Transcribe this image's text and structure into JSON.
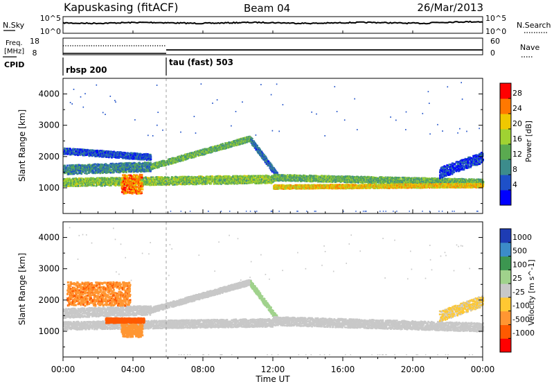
{
  "header": {
    "station": "Kapuskasing (fitACF)",
    "beam": "Beam 04",
    "date": "26/Mar/2013"
  },
  "noise_panel": {
    "left_label": "N.Sky",
    "right_label": "N.Search",
    "left_ticks": [
      "10^5",
      "10^0"
    ],
    "right_ticks": [
      "10^5",
      "10^0"
    ]
  },
  "freq_panel": {
    "left_label_1": "Freq.",
    "left_label_2": "[MHz]",
    "right_label": "Nave",
    "left_ticks": [
      "18",
      "8"
    ],
    "right_ticks": [
      "60",
      "0"
    ]
  },
  "cpid": {
    "label": "CPID",
    "segments": [
      {
        "name": "rbsp 200",
        "start_hour": 0
      },
      {
        "name": "tau (fast) 503",
        "start_hour": 6
      }
    ]
  },
  "x_axis": {
    "label": "Time UT",
    "ticks": [
      "00:00",
      "04:00",
      "08:00",
      "12:00",
      "16:00",
      "20:00",
      "00:00"
    ],
    "range_hours": [
      0,
      24
    ]
  },
  "power_bar": {
    "label": "Power [dB]",
    "ticks": [
      "28",
      "24",
      "20",
      "16",
      "12",
      "8",
      "4"
    ],
    "colors": [
      "#0000ff",
      "#1e50c8",
      "#3c8c8c",
      "#5aaa50",
      "#a0d232",
      "#f0c800",
      "#ff7800",
      "#ff0000"
    ]
  },
  "velocity_bar": {
    "label": "Velocity [m s^-1]",
    "ticks": [
      "1000",
      "500",
      "100",
      "25",
      "-25",
      "-100",
      "-500",
      "-1000"
    ],
    "colors": [
      "#ff0000",
      "#ff5a00",
      "#ff9632",
      "#ffc832",
      "#c8c8c8",
      "#a0d28c",
      "#3c9650",
      "#3c8cc8",
      "#1e3cb4"
    ]
  },
  "chart_data": {
    "type": "heatmap",
    "panels": [
      {
        "name": "power",
        "ylabel": "Slant Range [km]",
        "yticks": [
          1000,
          2000,
          3000,
          4000
        ],
        "ylim": [
          180,
          4500
        ],
        "colorbar_range": [
          0,
          30
        ],
        "features": [
          {
            "kind": "band",
            "t0": 0.0,
            "t1": 12.0,
            "r_start": 1200,
            "r_end": 1300,
            "width": 260,
            "level": 16
          },
          {
            "kind": "band",
            "t0": 0.0,
            "t1": 5.0,
            "r_start": 1600,
            "r_end": 1700,
            "width": 300,
            "level": 10
          },
          {
            "kind": "band",
            "t0": 0.0,
            "t1": 5.0,
            "r_start": 2200,
            "r_end": 2000,
            "width": 200,
            "level": 6
          },
          {
            "kind": "band",
            "t0": 5.0,
            "t1": 10.7,
            "r_start": 1700,
            "r_end": 2600,
            "width": 180,
            "level": 14
          },
          {
            "kind": "band",
            "t0": 10.7,
            "t1": 12.3,
            "r_start": 2550,
            "r_end": 1350,
            "width": 200,
            "level": 8
          },
          {
            "kind": "band",
            "t0": 12.0,
            "t1": 24.0,
            "r_start": 1350,
            "r_end": 1200,
            "width": 200,
            "level": 14
          },
          {
            "kind": "band",
            "t0": 12.0,
            "t1": 24.0,
            "r_start": 1050,
            "r_end": 1100,
            "width": 130,
            "level": 22
          },
          {
            "kind": "band",
            "t0": 21.5,
            "t1": 24.0,
            "r_start": 1500,
            "r_end": 2000,
            "width": 350,
            "level": 5
          },
          {
            "kind": "blob",
            "t0": 3.3,
            "t1": 4.5,
            "r_start": 850,
            "r_end": 1450,
            "level": 26
          }
        ]
      },
      {
        "name": "velocity",
        "ylabel": "Slant Range [km]",
        "yticks": [
          1000,
          2000,
          3000,
          4000
        ],
        "ylim": [
          180,
          4500
        ],
        "colorbar_range": [
          -1000,
          1000
        ],
        "features": [
          {
            "kind": "band",
            "t0": 0.0,
            "t1": 12.0,
            "r_start": 1200,
            "r_end": 1300,
            "width": 260,
            "level": 0
          },
          {
            "kind": "band",
            "t0": 0.0,
            "t1": 5.0,
            "r_start": 1600,
            "r_end": 1700,
            "width": 300,
            "level": 0
          },
          {
            "kind": "band",
            "t0": 5.0,
            "t1": 10.7,
            "r_start": 1700,
            "r_end": 2600,
            "width": 180,
            "level": 0
          },
          {
            "kind": "band",
            "t0": 10.7,
            "t1": 12.3,
            "r_start": 2550,
            "r_end": 1350,
            "width": 200,
            "level": 60
          },
          {
            "kind": "band",
            "t0": 12.0,
            "t1": 24.0,
            "r_start": 1350,
            "r_end": 1150,
            "width": 280,
            "level": 0
          },
          {
            "kind": "blob",
            "t0": 0.2,
            "t1": 3.8,
            "r_start": 1850,
            "r_end": 2600,
            "level": -380
          },
          {
            "kind": "blob",
            "t0": 2.4,
            "t1": 4.6,
            "r_start": 1300,
            "r_end": 1450,
            "level": -700
          },
          {
            "kind": "blob",
            "t0": 3.3,
            "t1": 4.5,
            "r_start": 850,
            "r_end": 1250,
            "level": -300
          },
          {
            "kind": "band",
            "t0": 21.5,
            "t1": 24.0,
            "r_start": 1500,
            "r_end": 2000,
            "width": 350,
            "level": -30
          }
        ]
      }
    ]
  }
}
